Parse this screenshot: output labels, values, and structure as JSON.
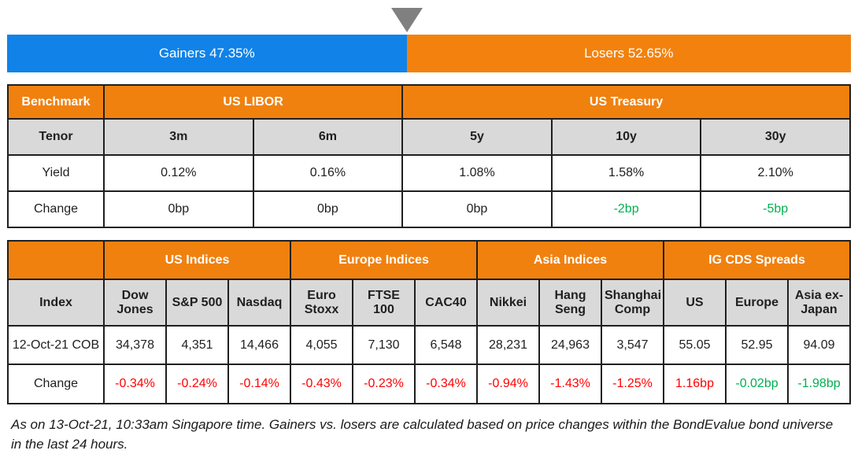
{
  "colors": {
    "gainers_blue": "#1082e8",
    "losers_orange": "#f2820d",
    "header_orange": "#f0810f",
    "subheader_gray": "#d9d9d9",
    "negative_red": "#ff0000",
    "positive_green": "#00b050",
    "triangle_gray": "#808080"
  },
  "gauge": {
    "gainers_label": "Gainers 47.35%",
    "losers_label": "Losers 52.65%",
    "gainers_pct": 47.35,
    "losers_pct": 52.65
  },
  "benchmark_table": {
    "corner_label": "Benchmark",
    "group_labels": [
      "US LIBOR",
      "US Treasury"
    ],
    "tenor_label": "Tenor",
    "tenors": [
      "3m",
      "6m",
      "5y",
      "10y",
      "30y"
    ],
    "yield_label": "Yield",
    "yields": [
      "0.12%",
      "0.16%",
      "1.08%",
      "1.58%",
      "2.10%"
    ],
    "change_label": "Change",
    "changes": [
      "0bp",
      "0bp",
      "0bp",
      "-2bp",
      "-5bp"
    ]
  },
  "indices_table": {
    "corner_label": "",
    "group_labels": [
      "US Indices",
      "Europe Indices",
      "Asia Indices",
      "IG CDS Spreads"
    ],
    "index_label": "Index",
    "index_names": [
      "Dow Jones",
      "S&P 500",
      "Nasdaq",
      "Euro Stoxx",
      "FTSE 100",
      "CAC40",
      "Nikkei",
      "Hang Seng",
      "Shanghai Comp",
      "US",
      "Europe",
      "Asia ex-Japan"
    ],
    "row_label": "12-Oct-21 COB",
    "values": [
      "34,378",
      "4,351",
      "14,466",
      "4,055",
      "7,130",
      "6,548",
      "28,231",
      "24,963",
      "3,547",
      "55.05",
      "52.95",
      "94.09"
    ],
    "change_label": "Change",
    "changes": [
      "-0.34%",
      "-0.24%",
      "-0.14%",
      "-0.43%",
      "-0.23%",
      "-0.34%",
      "-0.94%",
      "-1.43%",
      "-1.25%",
      "1.16bp",
      "-0.02bp",
      "-1.98bp"
    ]
  },
  "footnote": "As on 13-Oct-21, 10:33am Singapore time. Gainers vs. losers are calculated based on price changes within the BondEvalue bond universe in the last 24 hours.",
  "chart_data": [
    {
      "type": "bar",
      "title": "Gainers vs Losers",
      "categories": [
        "Gainers",
        "Losers"
      ],
      "values": [
        47.35,
        52.65
      ],
      "unit": "%",
      "orientation": "horizontal-stacked",
      "colors": [
        "#1082e8",
        "#f2820d"
      ],
      "annotations": [
        "gray down-triangle marker at the 47.35/52.65 boundary"
      ]
    },
    {
      "type": "table",
      "title": "Benchmark",
      "column_groups": [
        {
          "label": "US LIBOR",
          "span": 2
        },
        {
          "label": "US Treasury",
          "span": 3
        }
      ],
      "columns": [
        "Tenor",
        "3m",
        "6m",
        "5y",
        "10y",
        "30y"
      ],
      "rows": [
        [
          "Yield",
          "0.12%",
          "0.16%",
          "1.08%",
          "1.58%",
          "2.10%"
        ],
        [
          "Change",
          "0bp",
          "0bp",
          "0bp",
          "-2bp",
          "-5bp"
        ]
      ]
    },
    {
      "type": "table",
      "title": "Indices and IG CDS Spreads",
      "column_groups": [
        {
          "label": "US Indices",
          "span": 3
        },
        {
          "label": "Europe Indices",
          "span": 3
        },
        {
          "label": "Asia Indices",
          "span": 3
        },
        {
          "label": "IG CDS Spreads",
          "span": 3
        }
      ],
      "columns": [
        "Index",
        "Dow Jones",
        "S&P 500",
        "Nasdaq",
        "Euro Stoxx",
        "FTSE 100",
        "CAC40",
        "Nikkei",
        "Hang Seng",
        "Shanghai Comp",
        "US",
        "Europe",
        "Asia ex-Japan"
      ],
      "rows": [
        [
          "12-Oct-21 COB",
          "34,378",
          "4,351",
          "14,466",
          "4,055",
          "7,130",
          "6,548",
          "28,231",
          "24,963",
          "3,547",
          "55.05",
          "52.95",
          "94.09"
        ],
        [
          "Change",
          "-0.34%",
          "-0.24%",
          "-0.14%",
          "-0.43%",
          "-0.23%",
          "-0.34%",
          "-0.94%",
          "-1.43%",
          "-1.25%",
          "1.16bp",
          "-0.02bp",
          "-1.98bp"
        ]
      ]
    }
  ]
}
